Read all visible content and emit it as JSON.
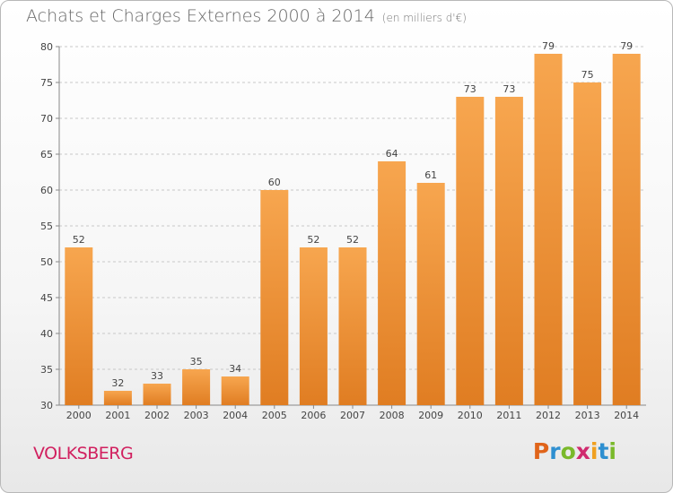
{
  "header": {
    "title": "Achats et Charges Externes 2000 à 2014",
    "unit": "(en milliers d'€)"
  },
  "footer": {
    "place": "VOLKSBERG",
    "logo_text": "Proxiti"
  },
  "colors": {
    "bar_light": "#f7a64f",
    "bar_dark": "#e07d22",
    "place": "#d1205f",
    "logo_letters": [
      "#e0641a",
      "#2e8fd0",
      "#7ab92a",
      "#d02a6e",
      "#f0a020",
      "#2e8fd0",
      "#7ab92a"
    ]
  },
  "chart_data": {
    "type": "bar",
    "title": "Achats et Charges Externes 2000 à 2014",
    "unit_note": "(en milliers d'€)",
    "categories": [
      "2000",
      "2001",
      "2002",
      "2003",
      "2004",
      "2005",
      "2006",
      "2007",
      "2008",
      "2009",
      "2010",
      "2011",
      "2012",
      "2013",
      "2014"
    ],
    "values": [
      52,
      32,
      33,
      35,
      34,
      60,
      52,
      52,
      64,
      61,
      73,
      73,
      79,
      75,
      79
    ],
    "ylim": [
      30,
      80
    ],
    "yticks": [
      30,
      35,
      40,
      45,
      50,
      55,
      60,
      65,
      70,
      75,
      80
    ],
    "grid": "horizontal-dashed",
    "legend": "none"
  }
}
